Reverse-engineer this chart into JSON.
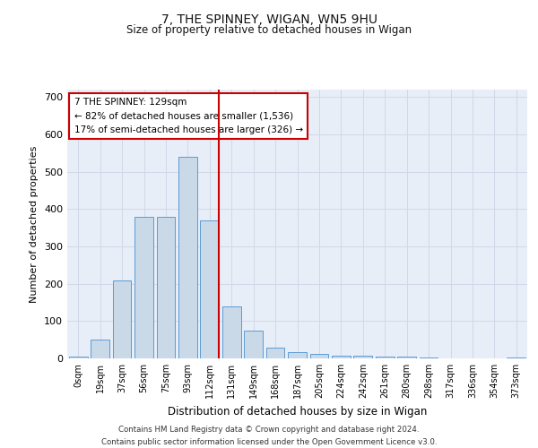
{
  "title_line1": "7, THE SPINNEY, WIGAN, WN5 9HU",
  "title_line2": "Size of property relative to detached houses in Wigan",
  "xlabel": "Distribution of detached houses by size in Wigan",
  "ylabel": "Number of detached properties",
  "bar_labels": [
    "0sqm",
    "19sqm",
    "37sqm",
    "56sqm",
    "75sqm",
    "93sqm",
    "112sqm",
    "131sqm",
    "149sqm",
    "168sqm",
    "187sqm",
    "205sqm",
    "224sqm",
    "242sqm",
    "261sqm",
    "280sqm",
    "298sqm",
    "317sqm",
    "336sqm",
    "354sqm",
    "373sqm"
  ],
  "bar_heights": [
    5,
    50,
    210,
    380,
    380,
    540,
    370,
    140,
    75,
    30,
    17,
    12,
    8,
    7,
    6,
    6,
    2,
    0,
    0,
    0,
    2
  ],
  "bar_color": "#c9d9e8",
  "bar_edge_color": "#5b9bd5",
  "vline_x": 6,
  "vline_color": "#cc0000",
  "annotation_line1": "7 THE SPINNEY: 129sqm",
  "annotation_line2": "← 82% of detached houses are smaller (1,536)",
  "annotation_line3": "17% of semi-detached houses are larger (326) →",
  "annotation_box_facecolor": "white",
  "annotation_box_edgecolor": "#cc0000",
  "ylim": [
    0,
    720
  ],
  "yticks": [
    0,
    100,
    200,
    300,
    400,
    500,
    600,
    700
  ],
  "grid_color": "#d0d8e8",
  "background_color": "#e8eef8",
  "footer_line1": "Contains HM Land Registry data © Crown copyright and database right 2024.",
  "footer_line2": "Contains public sector information licensed under the Open Government Licence v3.0."
}
